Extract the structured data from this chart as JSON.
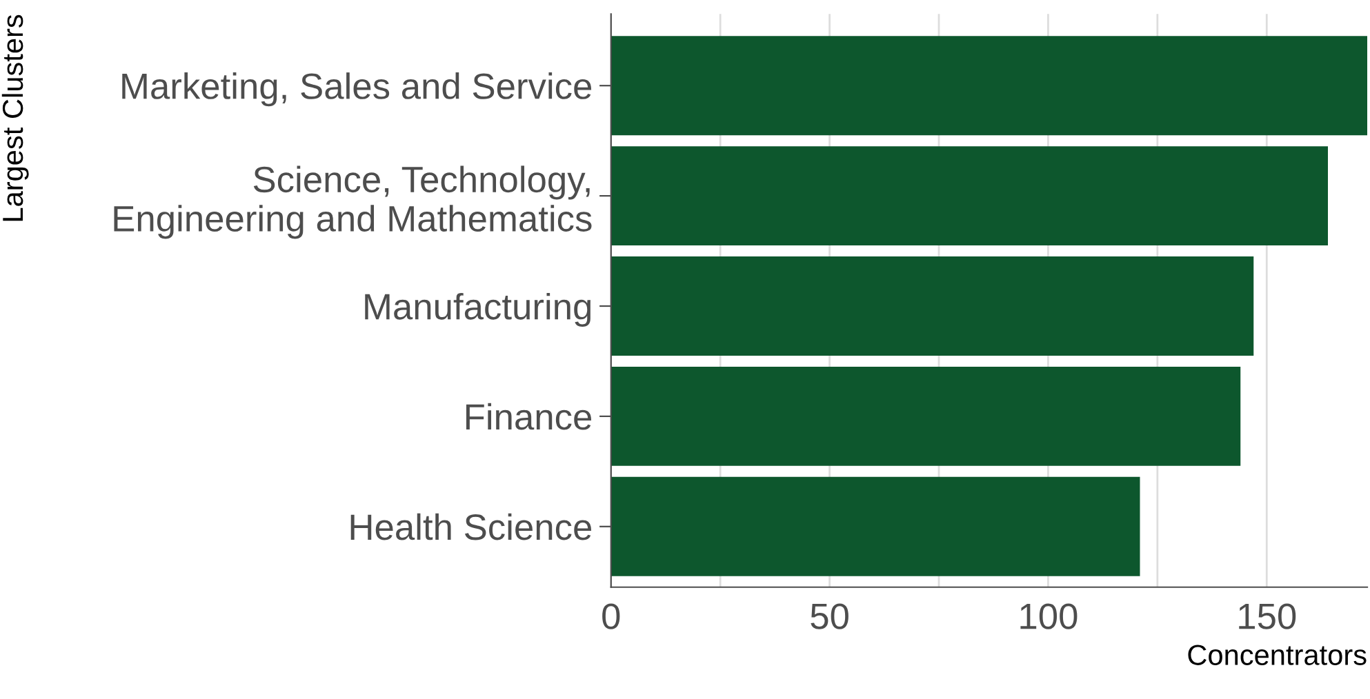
{
  "chart_data": {
    "type": "bar",
    "orientation": "horizontal",
    "xlabel": "Concentrators",
    "ylabel": "Largest Clusters",
    "categories": [
      "Marketing, Sales and Service",
      "Science, Technology,\nEngineering and Mathematics",
      "Manufacturing",
      "Finance",
      "Health Science"
    ],
    "values": [
      173,
      164,
      147,
      144,
      121
    ],
    "color": "#0d572d",
    "xlim": [
      0,
      173
    ],
    "xticks": [
      0,
      {
        "value": 25,
        "label": null
      },
      50,
      {
        "value": 75,
        "label": null
      },
      100,
      {
        "value": 125,
        "label": null
      },
      150
    ],
    "grid": "x"
  }
}
